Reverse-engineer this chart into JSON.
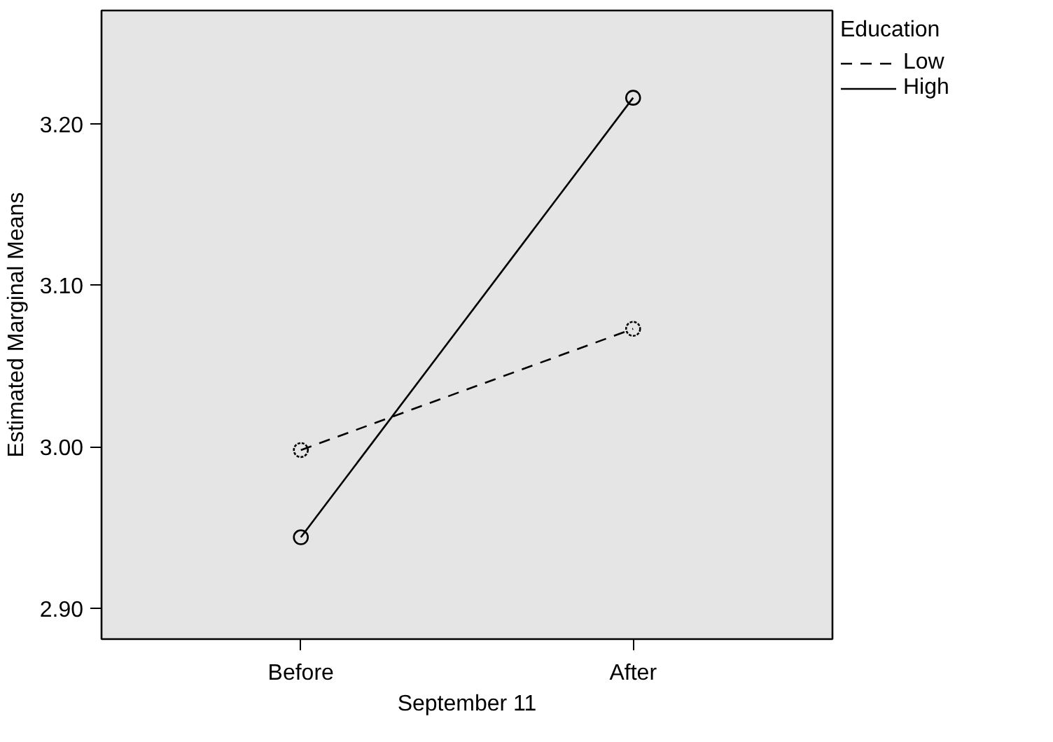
{
  "chart_data": {
    "type": "line",
    "xlabel": "September 11",
    "ylabel": "Estimated Marginal Means",
    "legend_title": "Education",
    "categories": [
      "Before",
      "After"
    ],
    "series": [
      {
        "name": "Low",
        "color": "#000000",
        "values": [
          2.998,
          3.073
        ],
        "line_style": "dashed"
      },
      {
        "name": "High",
        "color": "#000000",
        "values": [
          2.944,
          3.216
        ],
        "line_style": "solid"
      }
    ],
    "ylim": [
      2.881,
      3.27
    ],
    "yticks": [
      {
        "value": 2.9,
        "label": "2.90"
      },
      {
        "value": 3.0,
        "label": "3.00"
      },
      {
        "value": 3.1,
        "label": "3.10"
      },
      {
        "value": 3.2,
        "label": "3.20"
      }
    ],
    "marker": "circle",
    "grid": false,
    "legend": "top right"
  }
}
